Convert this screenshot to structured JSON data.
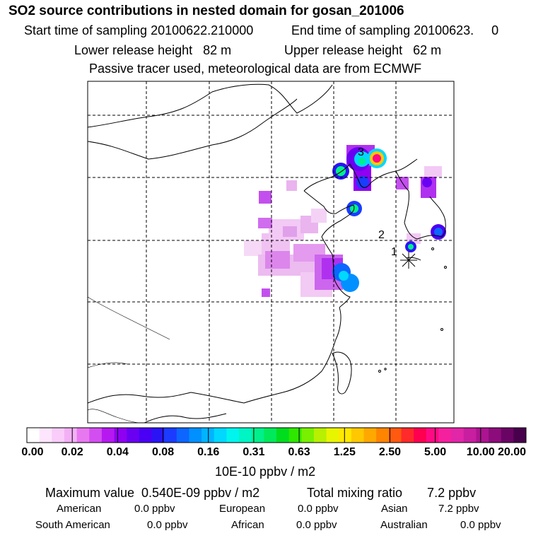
{
  "title": "SO2 source contributions in nested domain for gosan_201006",
  "sampling": {
    "start": "Start time of sampling 20100622.210000",
    "end": "End time of sampling 20100623.     0"
  },
  "release": {
    "lower": "Lower release height   82 m",
    "upper": "Upper release height   62 m"
  },
  "note": "Passive tracer used, meteorological data are from ECMWF",
  "map": {
    "labels": [
      {
        "id": "3",
        "text": "3"
      },
      {
        "id": "2",
        "text": "2"
      },
      {
        "id": "1",
        "text": "1"
      }
    ],
    "receptor": "gosan-receptor-star"
  },
  "colorbar": {
    "ticks": [
      "0.00",
      "0.02",
      "0.04",
      "0.08",
      "0.16",
      "0.31",
      "0.63",
      "1.25",
      "2.50",
      "5.00",
      "10.00",
      "20.00"
    ],
    "colors": [
      "#ffffff",
      "#fde6fd",
      "#f9ccf9",
      "#f3b0f5",
      "#e878f0",
      "#d34ef0",
      "#b619f0",
      "#9000f2",
      "#6a00f2",
      "#4a00f4",
      "#2a14f6",
      "#1b3cff",
      "#0d66ff",
      "#0090ff",
      "#00b4ff",
      "#00d8ff",
      "#00f5ee",
      "#00f5c4",
      "#00f08c",
      "#00e95a",
      "#00dd1e",
      "#2ee800",
      "#78f000",
      "#b7f000",
      "#e8f500",
      "#ffe800",
      "#ffc800",
      "#ffa800",
      "#ff8400",
      "#ff5a10",
      "#ff2a2a",
      "#ff0050",
      "#ff0a84",
      "#f5209e",
      "#e126a8",
      "#c81ea0",
      "#ac1490",
      "#8c0c7c",
      "#6a0464",
      "#48004c"
    ],
    "unit": "10E-10 ppbv / m2"
  },
  "summary": {
    "max_label": "Maximum value  0.540E-09 ppbv / m2",
    "total_label": "Total mixing ratio       7.2 ppbv",
    "american_label": "American",
    "american_value": "0.0 ppbv",
    "european_label": "European",
    "european_value": "0.0 ppbv",
    "asian_label": "Asian",
    "asian_value": "7.2 ppbv",
    "south_american_label": "South American",
    "south_american_value": "0.0 ppbv",
    "african_label": "African",
    "african_value": "0.0 ppbv",
    "australian_label": "Australian",
    "australian_value": "0.0 ppbv"
  }
}
